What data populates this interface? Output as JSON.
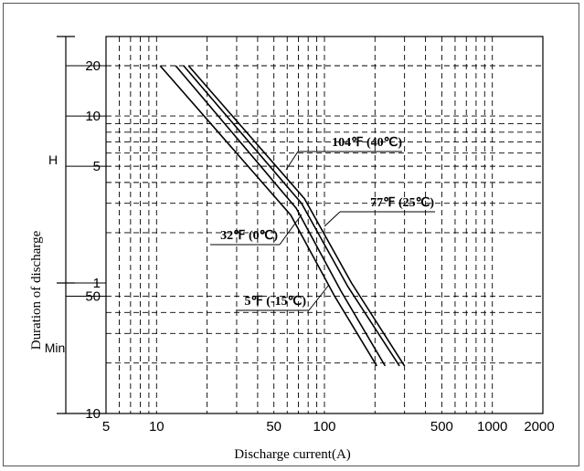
{
  "chart_data": {
    "type": "line",
    "xlabel": "Discharge current(A)",
    "ylabel": "Duration of discharge",
    "x_scale": "log",
    "y_scale": "log",
    "xlim": [
      5,
      2000
    ],
    "x_ticks": [
      {
        "value": 5,
        "label": "5"
      },
      {
        "value": 10,
        "label": "10"
      },
      {
        "value": 50,
        "label": "50"
      },
      {
        "value": 100,
        "label": "100"
      },
      {
        "value": 500,
        "label": "500"
      },
      {
        "value": 1000,
        "label": "1000"
      },
      {
        "value": 2000,
        "label": "2000"
      }
    ],
    "y_ticks_hours": [
      {
        "value": 20,
        "label": "20"
      },
      {
        "value": 10,
        "label": "10"
      },
      {
        "value": 5,
        "label": "5"
      },
      {
        "value": 1,
        "label": "1"
      }
    ],
    "y_ticks_minutes": [
      {
        "value": 50,
        "label": "50"
      },
      {
        "value": 10,
        "label": "10"
      }
    ],
    "y_units": {
      "hours": "H",
      "minutes": "Min"
    },
    "grid": true,
    "series": [
      {
        "name": "5℉ (-15℃)",
        "x": [
          10.5,
          63,
          115,
          205
        ],
        "y_hours": [
          20,
          2.55,
          0.833,
          0.32
        ]
      },
      {
        "name": "32℉ (0℃)",
        "x": [
          13,
          68,
          125,
          230
        ],
        "y_hours": [
          20,
          2.8,
          0.9,
          0.32
        ]
      },
      {
        "name": "104℉ (40℃)",
        "x": [
          14.5,
          73,
          138,
          280
        ],
        "y_hours": [
          20,
          3.0,
          0.95,
          0.32
        ]
      },
      {
        "name": "77℉ (25℃)",
        "x": [
          15.5,
          76,
          145,
          300
        ],
        "y_hours": [
          20,
          3.2,
          1.0,
          0.32
        ]
      }
    ],
    "annotations": [
      {
        "text": "104℉ (40℃)"
      },
      {
        "text": "77℉ (25℃)"
      },
      {
        "text": "32℉ (0℃)"
      },
      {
        "text": "5℉ (-15℃)"
      }
    ]
  }
}
